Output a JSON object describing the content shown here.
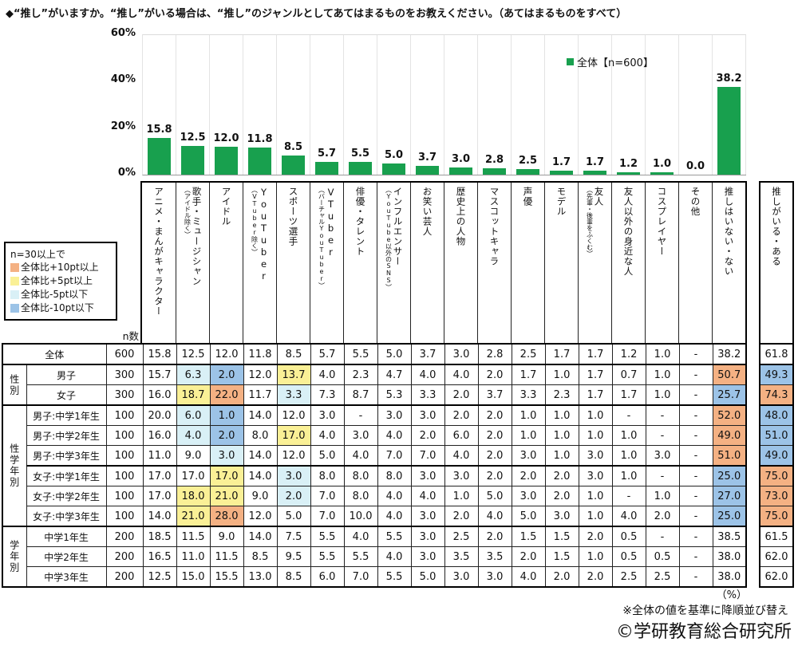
{
  "title": "◆“推し”がいますか。“推し”がいる場合は、“推し”のジャンルとしてあてはまるものをお教えください。（あてはまるものをすべて）",
  "chart": {
    "y_ticks": [
      "60%",
      "40%",
      "20%",
      "0%"
    ],
    "legend_label": "全体【n=600】",
    "bar_color": "#18A04E",
    "value_labels": [
      "15.8",
      "12.5",
      "12.0",
      "11.8",
      "8.5",
      "5.7",
      "5.5",
      "5.0",
      "3.7",
      "3.0",
      "2.8",
      "2.5",
      "1.7",
      "1.7",
      "1.2",
      "1.0",
      "0.0",
      "38.2"
    ]
  },
  "chart_data": {
    "type": "bar",
    "title": "“推し”のジャンル",
    "series_name": "全体【n=600】",
    "categories": [
      "アニメ・まんがキャラクター",
      "歌手・ミュージシャン（アイドル除く）",
      "アイドル",
      "YouTuber（VTuber除く）",
      "スポーツ選手",
      "VTuber（バーチャルYouTuber）",
      "俳優・タレント",
      "インフルエンサー（YouTube以外のSNS）",
      "お笑い芸人",
      "歴史上の人物",
      "マスコットキャラ",
      "声優",
      "モデル",
      "友人（先輩・後輩をふくむ）",
      "友人以外の身近な人",
      "コスプレイヤー",
      "その他",
      "推しはいない・ない"
    ],
    "values": [
      15.8,
      12.5,
      12.0,
      11.8,
      8.5,
      5.7,
      5.5,
      5.0,
      3.7,
      3.0,
      2.8,
      2.5,
      1.7,
      1.7,
      1.2,
      1.0,
      0.0,
      38.2
    ],
    "xlabel": "",
    "ylabel": "%",
    "ylim": [
      0,
      60
    ],
    "grid": "vertical-separators-only",
    "legend_position": "top-right"
  },
  "columns": [
    {
      "main": "アニメ・まんがキャラクター",
      "sub": ""
    },
    {
      "main": "歌手・ミュージシャン",
      "sub": "（アイドル除く）"
    },
    {
      "main": "アイドル",
      "sub": ""
    },
    {
      "main": "YouTuber",
      "sub": "（VTuber除く）"
    },
    {
      "main": "スポーツ選手",
      "sub": ""
    },
    {
      "main": "VTuber",
      "sub": "（バーチャルYouTuber）"
    },
    {
      "main": "俳優・タレント",
      "sub": ""
    },
    {
      "main": "インフルエンサー",
      "sub": "（YouTube以外のSNS）"
    },
    {
      "main": "お笑い芸人",
      "sub": ""
    },
    {
      "main": "歴史上の人物",
      "sub": ""
    },
    {
      "main": "マスコットキャラ",
      "sub": ""
    },
    {
      "main": "声優",
      "sub": ""
    },
    {
      "main": "モデル",
      "sub": ""
    },
    {
      "main": "友人",
      "sub": "（先輩・後輩をふくむ）"
    },
    {
      "main": "友人以外の身近な人",
      "sub": ""
    },
    {
      "main": "コスプレイヤー",
      "sub": ""
    },
    {
      "main": "その他",
      "sub": ""
    },
    {
      "main": "推しはいない・ない",
      "sub": ""
    }
  ],
  "aru_column": {
    "main": "推しがいる・ある"
  },
  "legend_box": {
    "title": "n=30以上で",
    "items": [
      {
        "label": "全体比+10pt以上",
        "key": "plus10"
      },
      {
        "label": "全体比+5pt以上",
        "key": "plus5"
      },
      {
        "label": "全体比-5pt以下",
        "key": "minus5"
      },
      {
        "label": "全体比-10pt以下",
        "key": "minus10"
      }
    ]
  },
  "colors": {
    "plus10": "#F4B183",
    "plus5": "#FAF096",
    "minus5": "#D9F0F6",
    "minus10": "#9CC3E7"
  },
  "n_header": "n数",
  "table": {
    "rows": [
      {
        "label": "全体",
        "full": true,
        "n": "600",
        "v": [
          "15.8",
          "12.5",
          "12.0",
          "11.8",
          "8.5",
          "5.7",
          "5.5",
          "5.0",
          "3.7",
          "3.0",
          "2.8",
          "2.5",
          "1.7",
          "1.7",
          "1.2",
          "1.0",
          "-",
          "38.2"
        ],
        "hl": {},
        "aru": "61.8",
        "aruHl": null,
        "sep": false
      },
      {
        "group": {
          "label": "性別",
          "span": 2
        },
        "label": "男子",
        "n": "300",
        "v": [
          "15.7",
          "6.3",
          "2.0",
          "12.0",
          "13.7",
          "4.0",
          "2.3",
          "4.7",
          "4.0",
          "4.0",
          "2.0",
          "1.7",
          "1.0",
          "1.7",
          "0.7",
          "1.0",
          "-",
          "50.7"
        ],
        "hl": {
          "1": "minus5",
          "2": "minus10",
          "4": "plus5",
          "17": "plus10"
        },
        "aru": "49.3",
        "aruHl": "minus10",
        "sep": true
      },
      {
        "label": "女子",
        "n": "300",
        "v": [
          "16.0",
          "18.7",
          "22.0",
          "11.7",
          "3.3",
          "7.3",
          "8.7",
          "5.3",
          "3.3",
          "2.0",
          "3.7",
          "3.3",
          "2.3",
          "1.7",
          "1.7",
          "1.0",
          "-",
          "25.7"
        ],
        "hl": {
          "1": "plus5",
          "2": "plus10",
          "4": "minus5",
          "17": "minus10"
        },
        "aru": "74.3",
        "aruHl": "plus10",
        "sep": false
      },
      {
        "group": {
          "label": "性学年別",
          "span": 6
        },
        "label": "男子:中学1年生",
        "n": "100",
        "v": [
          "20.0",
          "6.0",
          "1.0",
          "14.0",
          "12.0",
          "3.0",
          "-",
          "3.0",
          "3.0",
          "2.0",
          "2.0",
          "1.0",
          "1.0",
          "1.0",
          "-",
          "-",
          "-",
          "52.0"
        ],
        "hl": {
          "1": "minus5",
          "2": "minus10",
          "17": "plus10"
        },
        "aru": "48.0",
        "aruHl": "minus10",
        "sep": true
      },
      {
        "label": "男子:中学2年生",
        "n": "100",
        "v": [
          "16.0",
          "4.0",
          "2.0",
          "8.0",
          "17.0",
          "4.0",
          "3.0",
          "4.0",
          "2.0",
          "6.0",
          "2.0",
          "1.0",
          "1.0",
          "1.0",
          "1.0",
          "-",
          "-",
          "49.0"
        ],
        "hl": {
          "1": "minus5",
          "2": "minus10",
          "4": "plus5",
          "17": "plus10"
        },
        "aru": "51.0",
        "aruHl": "minus10",
        "sep": false
      },
      {
        "label": "男子:中学3年生",
        "n": "100",
        "v": [
          "11.0",
          "9.0",
          "3.0",
          "14.0",
          "12.0",
          "5.0",
          "4.0",
          "7.0",
          "7.0",
          "4.0",
          "2.0",
          "3.0",
          "1.0",
          "3.0",
          "1.0",
          "3.0",
          "-",
          "51.0"
        ],
        "hl": {
          "2": "minus5",
          "17": "plus10"
        },
        "aru": "49.0",
        "aruHl": "minus10",
        "sep": false
      },
      {
        "label": "女子:中学1年生",
        "n": "100",
        "v": [
          "17.0",
          "17.0",
          "17.0",
          "14.0",
          "3.0",
          "8.0",
          "8.0",
          "8.0",
          "3.0",
          "3.0",
          "2.0",
          "2.0",
          "2.0",
          "3.0",
          "1.0",
          "-",
          "-",
          "25.0"
        ],
        "hl": {
          "2": "plus5",
          "4": "minus5",
          "17": "minus10"
        },
        "aru": "75.0",
        "aruHl": "plus10",
        "sep": true
      },
      {
        "label": "女子:中学2年生",
        "n": "100",
        "v": [
          "17.0",
          "18.0",
          "21.0",
          "9.0",
          "2.0",
          "7.0",
          "8.0",
          "4.0",
          "4.0",
          "1.0",
          "5.0",
          "3.0",
          "2.0",
          "1.0",
          "-",
          "1.0",
          "-",
          "27.0"
        ],
        "hl": {
          "1": "plus5",
          "2": "plus5",
          "4": "minus5",
          "17": "minus10"
        },
        "aru": "73.0",
        "aruHl": "plus10",
        "sep": false
      },
      {
        "label": "女子:中学3年生",
        "n": "100",
        "v": [
          "14.0",
          "21.0",
          "28.0",
          "12.0",
          "5.0",
          "7.0",
          "10.0",
          "4.0",
          "3.0",
          "2.0",
          "4.0",
          "5.0",
          "3.0",
          "1.0",
          "4.0",
          "2.0",
          "-",
          "25.0"
        ],
        "hl": {
          "1": "plus5",
          "2": "plus10",
          "17": "minus10"
        },
        "aru": "75.0",
        "aruHl": "plus10",
        "sep": false
      },
      {
        "group": {
          "label": "学年別",
          "span": 3
        },
        "label": "中学1年生",
        "n": "200",
        "v": [
          "18.5",
          "11.5",
          "9.0",
          "14.0",
          "7.5",
          "5.5",
          "4.0",
          "5.5",
          "3.0",
          "2.5",
          "2.0",
          "1.5",
          "1.5",
          "2.0",
          "0.5",
          "-",
          "-",
          "38.5"
        ],
        "hl": {},
        "aru": "61.5",
        "aruHl": null,
        "sep": true
      },
      {
        "label": "中学2年生",
        "n": "200",
        "v": [
          "16.5",
          "11.0",
          "11.5",
          "8.5",
          "9.5",
          "5.5",
          "5.5",
          "4.0",
          "3.0",
          "3.5",
          "3.5",
          "2.0",
          "1.5",
          "1.0",
          "0.5",
          "0.5",
          "-",
          "38.0"
        ],
        "hl": {},
        "aru": "62.0",
        "aruHl": null,
        "sep": false
      },
      {
        "label": "中学3年生",
        "n": "200",
        "v": [
          "12.5",
          "15.0",
          "15.5",
          "13.0",
          "8.5",
          "6.0",
          "7.0",
          "5.5",
          "5.0",
          "3.0",
          "3.0",
          "4.0",
          "2.0",
          "2.0",
          "2.5",
          "2.5",
          "-",
          "38.0"
        ],
        "hl": {},
        "aru": "62.0",
        "aruHl": null,
        "sep": false
      }
    ]
  },
  "footer": {
    "percent": "（%）",
    "note": "※全体の値を基準に降順並び替え",
    "copyright": "©学研教育総合研究所"
  }
}
